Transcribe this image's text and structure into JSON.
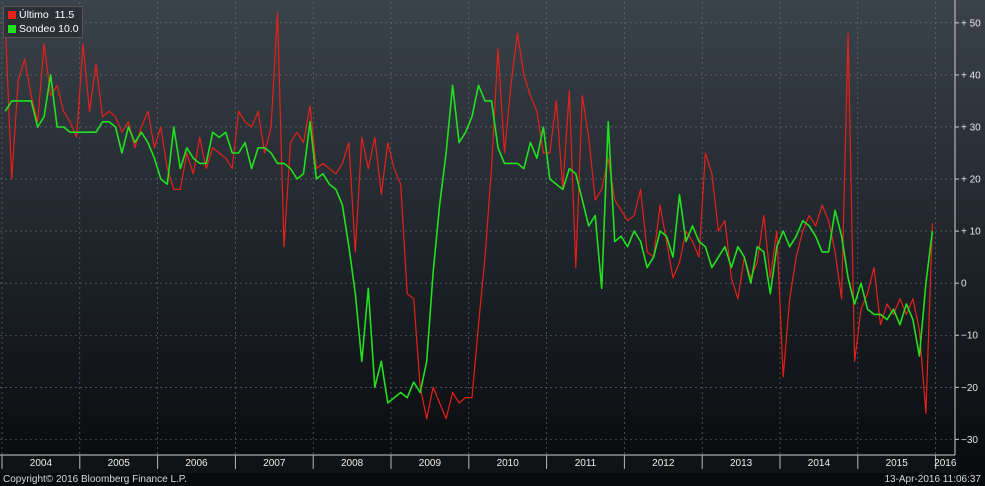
{
  "legend": {
    "items": [
      {
        "label": "Último",
        "value": "11.5",
        "color": "#e8201a"
      },
      {
        "label": "Sondeo",
        "value": "10.0",
        "color": "#22e01e"
      }
    ]
  },
  "footer": {
    "copyright": "Copyright© 2016 Bloomberg Finance L.P.",
    "timestamp": "13-Apr-2016 11:06:37"
  },
  "chart_data": {
    "type": "line",
    "x_range": [
      "2004-01",
      "2016-04"
    ],
    "ylim": [
      -33,
      54
    ],
    "y_ticks": [
      50,
      40,
      30,
      20,
      10,
      0,
      -10,
      -20,
      -30
    ],
    "x_labels": [
      "2004",
      "2005",
      "2006",
      "2007",
      "2008",
      "2009",
      "2010",
      "2011",
      "2012",
      "2013",
      "2014",
      "2015",
      "2016"
    ],
    "grid": true,
    "legend_position": "top-left",
    "series": [
      {
        "name": "Último",
        "color": "#e8201a",
        "points": [
          [
            "2004-01",
            50
          ],
          [
            "2004-02",
            20
          ],
          [
            "2004-03",
            39
          ],
          [
            "2004-04",
            43
          ],
          [
            "2004-05",
            36
          ],
          [
            "2004-06",
            31
          ],
          [
            "2004-07",
            46
          ],
          [
            "2004-08",
            36
          ],
          [
            "2004-09",
            38
          ],
          [
            "2004-10",
            33
          ],
          [
            "2004-11",
            31
          ],
          [
            "2004-12",
            28
          ],
          [
            "2005-01",
            46
          ],
          [
            "2005-02",
            33
          ],
          [
            "2005-03",
            42
          ],
          [
            "2005-04",
            32
          ],
          [
            "2005-05",
            33
          ],
          [
            "2005-06",
            32
          ],
          [
            "2005-07",
            29
          ],
          [
            "2005-08",
            31
          ],
          [
            "2005-09",
            26
          ],
          [
            "2005-10",
            30
          ],
          [
            "2005-11",
            33
          ],
          [
            "2005-12",
            26
          ],
          [
            "2006-01",
            30
          ],
          [
            "2006-02",
            22
          ],
          [
            "2006-03",
            18
          ],
          [
            "2006-04",
            18
          ],
          [
            "2006-05",
            25
          ],
          [
            "2006-06",
            21
          ],
          [
            "2006-07",
            28
          ],
          [
            "2006-08",
            22
          ],
          [
            "2006-09",
            26
          ],
          [
            "2006-10",
            25
          ],
          [
            "2006-11",
            24
          ],
          [
            "2006-12",
            22
          ],
          [
            "2007-01",
            33
          ],
          [
            "2007-02",
            31
          ],
          [
            "2007-03",
            30
          ],
          [
            "2007-04",
            33
          ],
          [
            "2007-05",
            25
          ],
          [
            "2007-06",
            30
          ],
          [
            "2007-07",
            52
          ],
          [
            "2007-08",
            7
          ],
          [
            "2007-09",
            27
          ],
          [
            "2007-10",
            29
          ],
          [
            "2007-11",
            27
          ],
          [
            "2007-12",
            34
          ],
          [
            "2008-01",
            22
          ],
          [
            "2008-02",
            23
          ],
          [
            "2008-03",
            22
          ],
          [
            "2008-04",
            21
          ],
          [
            "2008-05",
            23
          ],
          [
            "2008-06",
            27
          ],
          [
            "2008-07",
            6
          ],
          [
            "2008-08",
            28
          ],
          [
            "2008-09",
            22
          ],
          [
            "2008-10",
            28
          ],
          [
            "2008-11",
            17
          ],
          [
            "2008-12",
            27
          ],
          [
            "2009-01",
            22
          ],
          [
            "2009-02",
            19
          ],
          [
            "2009-03",
            -2
          ],
          [
            "2009-04",
            -3
          ],
          [
            "2009-05",
            -20
          ],
          [
            "2009-06",
            -26
          ],
          [
            "2009-07",
            -20
          ],
          [
            "2009-08",
            -23
          ],
          [
            "2009-09",
            -26
          ],
          [
            "2009-10",
            -21
          ],
          [
            "2009-11",
            -23
          ],
          [
            "2009-12",
            -22
          ],
          [
            "2010-01",
            -22
          ],
          [
            "2010-02",
            -8
          ],
          [
            "2010-03",
            5
          ],
          [
            "2010-04",
            22
          ],
          [
            "2010-05",
            45
          ],
          [
            "2010-06",
            25
          ],
          [
            "2010-07",
            38
          ],
          [
            "2010-08",
            48
          ],
          [
            "2010-09",
            40
          ],
          [
            "2010-10",
            36
          ],
          [
            "2010-11",
            33
          ],
          [
            "2010-12",
            25
          ],
          [
            "2011-01",
            25
          ],
          [
            "2011-02",
            35
          ],
          [
            "2011-03",
            18
          ],
          [
            "2011-04",
            37
          ],
          [
            "2011-05",
            3
          ],
          [
            "2011-06",
            36
          ],
          [
            "2011-07",
            28
          ],
          [
            "2011-08",
            16
          ],
          [
            "2011-09",
            18
          ],
          [
            "2011-10",
            24
          ],
          [
            "2011-11",
            16
          ],
          [
            "2011-12",
            14
          ],
          [
            "2012-01",
            12
          ],
          [
            "2012-02",
            13
          ],
          [
            "2012-03",
            18
          ],
          [
            "2012-04",
            6
          ],
          [
            "2012-05",
            5
          ],
          [
            "2012-06",
            15
          ],
          [
            "2012-07",
            8
          ],
          [
            "2012-08",
            1
          ],
          [
            "2012-09",
            4
          ],
          [
            "2012-10",
            10
          ],
          [
            "2012-11",
            8
          ],
          [
            "2012-12",
            5
          ],
          [
            "2013-01",
            25
          ],
          [
            "2013-02",
            21
          ],
          [
            "2013-03",
            10
          ],
          [
            "2013-04",
            12
          ],
          [
            "2013-05",
            1
          ],
          [
            "2013-06",
            -3
          ],
          [
            "2013-07",
            5
          ],
          [
            "2013-08",
            1
          ],
          [
            "2013-09",
            4
          ],
          [
            "2013-10",
            13
          ],
          [
            "2013-11",
            1
          ],
          [
            "2013-12",
            10
          ],
          [
            "2014-01",
            -18
          ],
          [
            "2014-02",
            -3
          ],
          [
            "2014-03",
            5
          ],
          [
            "2014-04",
            10
          ],
          [
            "2014-05",
            13
          ],
          [
            "2014-06",
            11
          ],
          [
            "2014-07",
            15
          ],
          [
            "2014-08",
            12
          ],
          [
            "2014-09",
            6
          ],
          [
            "2014-10",
            -3
          ],
          [
            "2014-11",
            48
          ],
          [
            "2014-12",
            -15
          ],
          [
            "2015-01",
            -5
          ],
          [
            "2015-02",
            -2
          ],
          [
            "2015-03",
            3
          ],
          [
            "2015-04",
            -8
          ],
          [
            "2015-05",
            -4
          ],
          [
            "2015-06",
            -6
          ],
          [
            "2015-07",
            -3
          ],
          [
            "2015-08",
            -6
          ],
          [
            "2015-09",
            -3
          ],
          [
            "2015-10",
            -9
          ],
          [
            "2015-11",
            -25
          ],
          [
            "2015-12",
            11.5
          ]
        ]
      },
      {
        "name": "Sondeo",
        "color": "#22e01e",
        "points": [
          [
            "2004-01",
            33
          ],
          [
            "2004-02",
            35
          ],
          [
            "2004-03",
            35
          ],
          [
            "2004-04",
            35
          ],
          [
            "2004-05",
            35
          ],
          [
            "2004-06",
            30
          ],
          [
            "2004-07",
            32
          ],
          [
            "2004-08",
            40
          ],
          [
            "2004-09",
            30
          ],
          [
            "2004-10",
            30
          ],
          [
            "2004-11",
            29
          ],
          [
            "2004-12",
            29
          ],
          [
            "2005-01",
            29
          ],
          [
            "2005-02",
            29
          ],
          [
            "2005-03",
            29
          ],
          [
            "2005-04",
            31
          ],
          [
            "2005-05",
            31
          ],
          [
            "2005-06",
            30
          ],
          [
            "2005-07",
            25
          ],
          [
            "2005-08",
            30
          ],
          [
            "2005-09",
            27
          ],
          [
            "2005-10",
            29
          ],
          [
            "2005-11",
            27
          ],
          [
            "2005-12",
            24
          ],
          [
            "2006-01",
            20
          ],
          [
            "2006-02",
            19
          ],
          [
            "2006-03",
            30
          ],
          [
            "2006-04",
            22
          ],
          [
            "2006-05",
            26
          ],
          [
            "2006-06",
            24
          ],
          [
            "2006-07",
            23
          ],
          [
            "2006-08",
            23
          ],
          [
            "2006-09",
            29
          ],
          [
            "2006-10",
            28
          ],
          [
            "2006-11",
            29
          ],
          [
            "2006-12",
            25
          ],
          [
            "2007-01",
            25
          ],
          [
            "2007-02",
            27
          ],
          [
            "2007-03",
            22
          ],
          [
            "2007-04",
            26
          ],
          [
            "2007-05",
            26
          ],
          [
            "2007-06",
            25
          ],
          [
            "2007-07",
            23
          ],
          [
            "2007-08",
            23
          ],
          [
            "2007-09",
            22
          ],
          [
            "2007-10",
            20
          ],
          [
            "2007-11",
            21
          ],
          [
            "2007-12",
            31
          ],
          [
            "2008-01",
            20
          ],
          [
            "2008-02",
            21
          ],
          [
            "2008-03",
            19
          ],
          [
            "2008-04",
            18
          ],
          [
            "2008-05",
            15
          ],
          [
            "2008-06",
            7
          ],
          [
            "2008-07",
            -2
          ],
          [
            "2008-08",
            -15
          ],
          [
            "2008-09",
            -1
          ],
          [
            "2008-10",
            -20
          ],
          [
            "2008-11",
            -15
          ],
          [
            "2008-12",
            -23
          ],
          [
            "2009-01",
            -22
          ],
          [
            "2009-02",
            -21
          ],
          [
            "2009-03",
            -22
          ],
          [
            "2009-04",
            -19
          ],
          [
            "2009-05",
            -21
          ],
          [
            "2009-06",
            -15
          ],
          [
            "2009-07",
            2
          ],
          [
            "2009-08",
            15
          ],
          [
            "2009-09",
            25
          ],
          [
            "2009-10",
            38
          ],
          [
            "2009-11",
            27
          ],
          [
            "2009-12",
            29
          ],
          [
            "2010-01",
            32
          ],
          [
            "2010-02",
            38
          ],
          [
            "2010-03",
            35
          ],
          [
            "2010-04",
            35
          ],
          [
            "2010-05",
            26
          ],
          [
            "2010-06",
            23
          ],
          [
            "2010-07",
            23
          ],
          [
            "2010-08",
            23
          ],
          [
            "2010-09",
            22
          ],
          [
            "2010-10",
            27
          ],
          [
            "2010-11",
            24
          ],
          [
            "2010-12",
            30
          ],
          [
            "2011-01",
            20
          ],
          [
            "2011-02",
            19
          ],
          [
            "2011-03",
            18
          ],
          [
            "2011-04",
            22
          ],
          [
            "2011-05",
            21
          ],
          [
            "2011-06",
            16
          ],
          [
            "2011-07",
            11
          ],
          [
            "2011-08",
            13
          ],
          [
            "2011-09",
            -1
          ],
          [
            "2011-10",
            31
          ],
          [
            "2011-11",
            8
          ],
          [
            "2011-12",
            9
          ],
          [
            "2012-01",
            7
          ],
          [
            "2012-02",
            10
          ],
          [
            "2012-03",
            8
          ],
          [
            "2012-04",
            3
          ],
          [
            "2012-05",
            5
          ],
          [
            "2012-06",
            10
          ],
          [
            "2012-07",
            9
          ],
          [
            "2012-08",
            5
          ],
          [
            "2012-09",
            17
          ],
          [
            "2012-10",
            8
          ],
          [
            "2012-11",
            11
          ],
          [
            "2012-12",
            8
          ],
          [
            "2013-01",
            7
          ],
          [
            "2013-02",
            3
          ],
          [
            "2013-03",
            5
          ],
          [
            "2013-04",
            7
          ],
          [
            "2013-05",
            3
          ],
          [
            "2013-06",
            7
          ],
          [
            "2013-07",
            5
          ],
          [
            "2013-08",
            0
          ],
          [
            "2013-09",
            7
          ],
          [
            "2013-10",
            6
          ],
          [
            "2013-11",
            -2
          ],
          [
            "2013-12",
            7
          ],
          [
            "2014-01",
            10
          ],
          [
            "2014-02",
            7
          ],
          [
            "2014-03",
            9
          ],
          [
            "2014-04",
            12
          ],
          [
            "2014-05",
            11
          ],
          [
            "2014-06",
            9
          ],
          [
            "2014-07",
            6
          ],
          [
            "2014-08",
            6
          ],
          [
            "2014-09",
            14
          ],
          [
            "2014-10",
            9
          ],
          [
            "2014-11",
            1
          ],
          [
            "2014-12",
            -4
          ],
          [
            "2015-01",
            0
          ],
          [
            "2015-02",
            -5
          ],
          [
            "2015-03",
            -6
          ],
          [
            "2015-04",
            -6
          ],
          [
            "2015-05",
            -7
          ],
          [
            "2015-06",
            -5
          ],
          [
            "2015-07",
            -8
          ],
          [
            "2015-08",
            -4
          ],
          [
            "2015-09",
            -7
          ],
          [
            "2015-10",
            -14
          ],
          [
            "2015-11",
            0
          ],
          [
            "2015-12",
            10
          ]
        ]
      }
    ]
  }
}
